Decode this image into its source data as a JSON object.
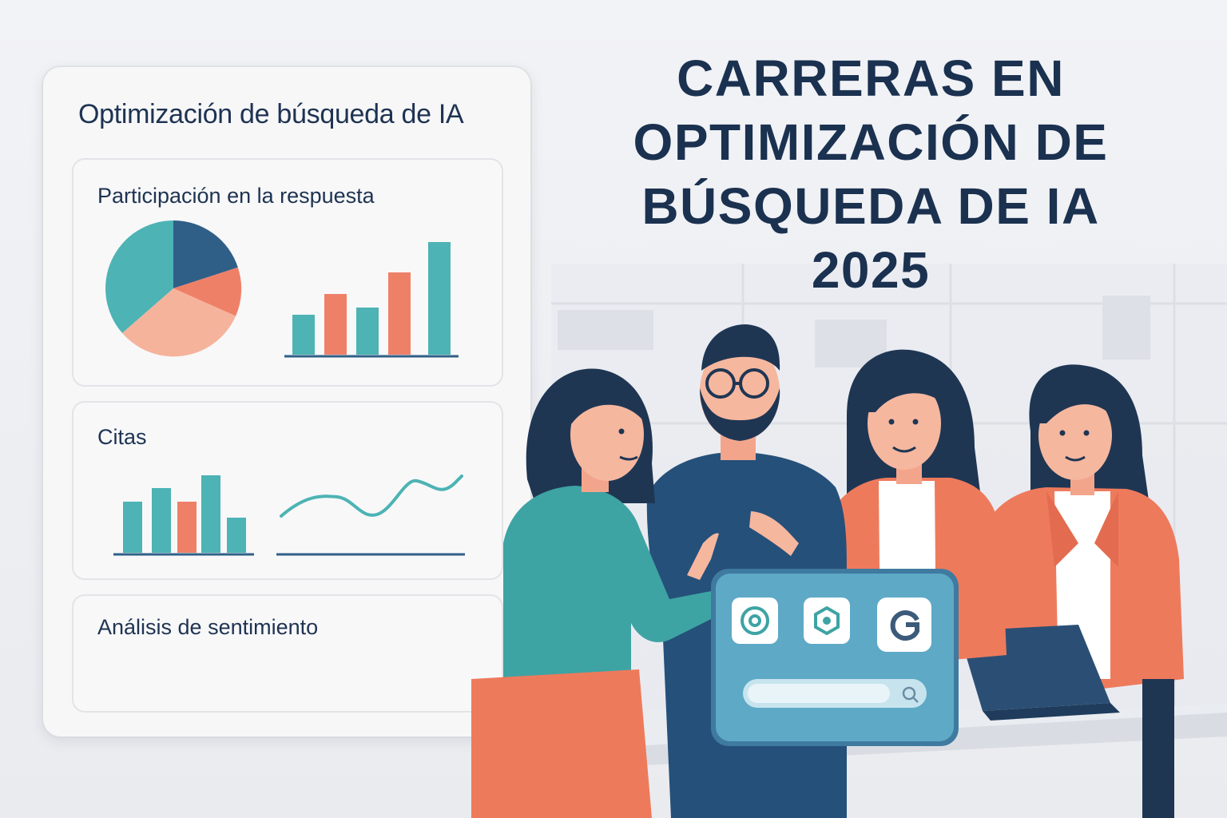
{
  "headline": {
    "line1": "CARRERAS EN",
    "line2": "OPTIMIZACIÓN DE",
    "line3": "BÚSQUEDA DE IA",
    "line4": "2025"
  },
  "dashboard": {
    "title": "Optimización de búsqueda de IA",
    "cards": [
      {
        "title": "Participación en la respuesta"
      },
      {
        "title": "Citas"
      },
      {
        "title": "Análisis de sentimiento"
      }
    ]
  },
  "colors": {
    "teal": "#4db3b4",
    "navy": "#2f5f87",
    "coral": "#ef8068",
    "peach": "#f6b39c",
    "ink": "#1b3150"
  },
  "icons": [
    "chatgpt-icon",
    "ai-hexagon-icon",
    "google-icon",
    "search-icon"
  ]
}
